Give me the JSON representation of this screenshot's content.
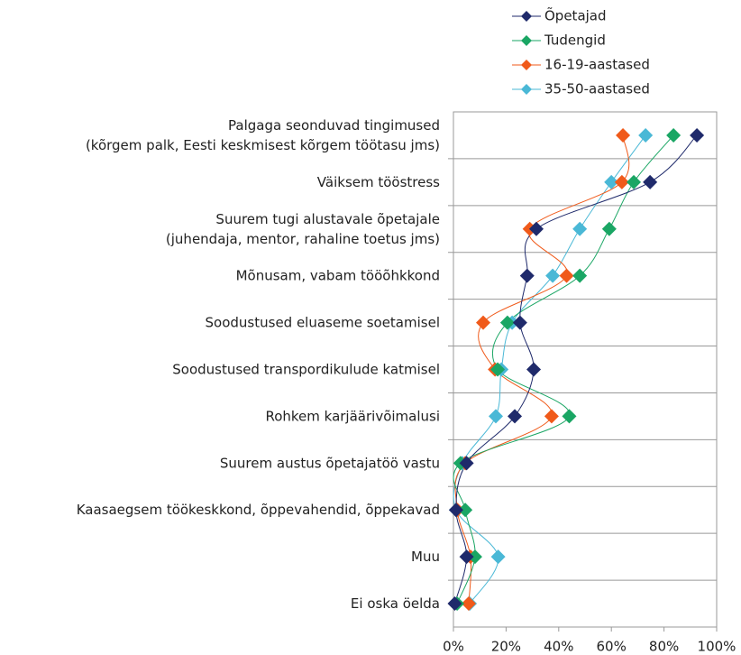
{
  "chart_data": {
    "type": "dot-line",
    "categories": [
      "Palgaga seonduvad tingimused\n(kõrgem palk, Eesti keskmisest kõrgem töötasu jms)",
      "Väiksem tööstress",
      "Suurem tugi alustavale õpetajale\n(juhendaja, mentor, rahaline toetus jms)",
      "Mõnusam, vabam tööõhkkond",
      "Soodustused eluaseme soetamisel",
      "Soodustused transpordikulude katmisel",
      "Rohkem karjäärivõimalusi",
      "Suurem austus õpetajatöö vastu",
      "Kaasaegsem töökeskkond, õppevahendid, õppekavad",
      "Muu",
      "Ei oska öelda"
    ],
    "series": [
      {
        "name": "Õpetajad",
        "color": "#1f2a6b",
        "values": [
          92.5,
          74.7,
          31.5,
          28,
          25.3,
          30.5,
          23.3,
          5,
          1,
          5,
          0.5
        ]
      },
      {
        "name": "Tudengid",
        "color": "#1aa664",
        "values": [
          83.6,
          68.5,
          59.2,
          48,
          20.5,
          16.8,
          44,
          2.7,
          4.5,
          8.2,
          1.4
        ]
      },
      {
        "name": "16-19-aastased",
        "color": "#f05a1a",
        "values": [
          64.4,
          64,
          29,
          43,
          11.3,
          15.8,
          37.3,
          4.5,
          1.5,
          6.5,
          5.8
        ]
      },
      {
        "name": "35-50-aastased",
        "color": "#4ab8d6",
        "values": [
          73,
          60,
          48,
          37.7,
          22.3,
          18.2,
          16.1,
          3.4,
          1,
          17,
          6.2
        ]
      }
    ],
    "xlim": [
      0,
      100
    ],
    "xticks": [
      {
        "value": 0,
        "label": "0%"
      },
      {
        "value": 20,
        "label": "20%"
      },
      {
        "value": 40,
        "label": "40%"
      },
      {
        "value": 60,
        "label": "60%"
      },
      {
        "value": 80,
        "label": "80%"
      },
      {
        "value": 100,
        "label": "100%"
      }
    ],
    "grid": true,
    "legend": "top-right"
  }
}
